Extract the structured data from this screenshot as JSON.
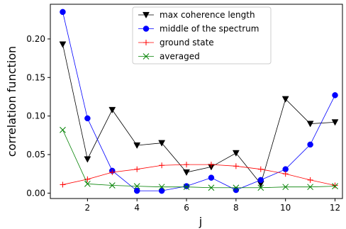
{
  "chart_data": {
    "type": "line",
    "xlabel": "j",
    "ylabel": "correlation function",
    "xlim": [
      0.5,
      12.3
    ],
    "ylim": [
      -0.007,
      0.245
    ],
    "x_ticks": [
      2,
      4,
      6,
      8,
      10,
      12
    ],
    "y_ticks": [
      0.0,
      0.05,
      0.1,
      0.15,
      0.2
    ],
    "y_tick_labels": [
      "0.00",
      "0.05",
      "0.10",
      "0.15",
      "0.20"
    ],
    "x_tick_labels": [
      "2",
      "4",
      "6",
      "8",
      "10",
      "12"
    ],
    "grid": false,
    "legend_position": "top-center",
    "x": [
      1,
      2,
      3,
      4,
      5,
      6,
      7,
      8,
      9,
      10,
      11,
      12
    ],
    "series": [
      {
        "name": "max coherence length",
        "color": "#000000",
        "marker": "triangle-down",
        "values": [
          0.193,
          0.044,
          0.108,
          0.062,
          0.065,
          0.027,
          0.034,
          0.052,
          0.012,
          0.122,
          0.09,
          0.092
        ]
      },
      {
        "name": "middle of the spectrum",
        "color": "#0000ff",
        "marker": "circle",
        "values": [
          0.235,
          0.097,
          0.029,
          0.003,
          0.003,
          0.009,
          0.02,
          0.004,
          0.017,
          0.031,
          0.063,
          0.127
        ]
      },
      {
        "name": "ground state",
        "color": "#ff0000",
        "marker": "plus",
        "values": [
          0.011,
          0.018,
          0.027,
          0.031,
          0.036,
          0.037,
          0.037,
          0.035,
          0.031,
          0.025,
          0.017,
          0.01
        ]
      },
      {
        "name": "averaged",
        "color": "#008000",
        "marker": "x",
        "values": [
          0.082,
          0.012,
          0.01,
          0.009,
          0.008,
          0.008,
          0.007,
          0.007,
          0.007,
          0.008,
          0.008,
          0.009
        ]
      }
    ]
  }
}
